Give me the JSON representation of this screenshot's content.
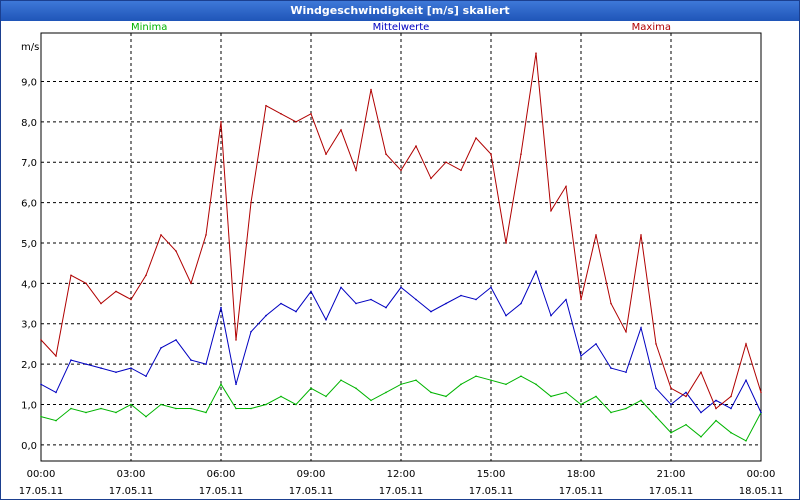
{
  "window": {
    "title": "Windgeschwindigkeit [m/s] skaliert"
  },
  "chart_data": {
    "type": "line",
    "title": "Windgeschwindigkeit [m/s] skaliert",
    "ylabel": "m/s",
    "xlabel": "",
    "ylim": [
      -0.4,
      10.2
    ],
    "xlim": [
      0,
      24
    ],
    "grid": true,
    "legend_position": "top",
    "yticks": [
      {
        "value": 0,
        "label": "0,0"
      },
      {
        "value": 1,
        "label": "1,0"
      },
      {
        "value": 2,
        "label": "2,0"
      },
      {
        "value": 3,
        "label": "3,0"
      },
      {
        "value": 4,
        "label": "4,0"
      },
      {
        "value": 5,
        "label": "5,0"
      },
      {
        "value": 6,
        "label": "6,0"
      },
      {
        "value": 7,
        "label": "7,0"
      },
      {
        "value": 8,
        "label": "8,0"
      },
      {
        "value": 9,
        "label": "9,0"
      }
    ],
    "xticks": [
      {
        "value": 0,
        "time": "00:00",
        "date": "17.05.11"
      },
      {
        "value": 3,
        "time": "03:00",
        "date": "17.05.11"
      },
      {
        "value": 6,
        "time": "06:00",
        "date": "17.05.11"
      },
      {
        "value": 9,
        "time": "09:00",
        "date": "17.05.11"
      },
      {
        "value": 12,
        "time": "12:00",
        "date": "17.05.11"
      },
      {
        "value": 15,
        "time": "15:00",
        "date": "17.05.11"
      },
      {
        "value": 18,
        "time": "18:00",
        "date": "17.05.11"
      },
      {
        "value": 21,
        "time": "21:00",
        "date": "17.05.11"
      },
      {
        "value": 24,
        "time": "00:00",
        "date": "18.05.11"
      }
    ],
    "series": [
      {
        "name": "Minima",
        "color": "#00b400",
        "legend_align": "left",
        "x": [
          0,
          0.5,
          1,
          1.5,
          2,
          2.5,
          3,
          3.5,
          4,
          4.5,
          5,
          5.5,
          6,
          6.5,
          7,
          7.5,
          8,
          8.5,
          9,
          9.5,
          10,
          10.5,
          11,
          11.5,
          12,
          12.5,
          13,
          13.5,
          14,
          14.5,
          15,
          15.5,
          16,
          16.5,
          17,
          17.5,
          18,
          18.5,
          19,
          19.5,
          20,
          20.5,
          21,
          21.5,
          22,
          22.5,
          23,
          23.5,
          24
        ],
        "values": [
          0.7,
          0.6,
          0.9,
          0.8,
          0.9,
          0.8,
          1.0,
          0.7,
          1.0,
          0.9,
          0.9,
          0.8,
          1.5,
          0.9,
          0.9,
          1.0,
          1.2,
          1.0,
          1.4,
          1.2,
          1.6,
          1.4,
          1.1,
          1.3,
          1.5,
          1.6,
          1.3,
          1.2,
          1.5,
          1.7,
          1.6,
          1.5,
          1.7,
          1.5,
          1.2,
          1.3,
          1.0,
          1.2,
          0.8,
          0.9,
          1.1,
          0.7,
          0.3,
          0.5,
          0.2,
          0.6,
          0.3,
          0.1,
          0.8
        ]
      },
      {
        "name": "Mittelwerte",
        "color": "#0000c0",
        "legend_align": "center",
        "x": [
          0,
          0.5,
          1,
          1.5,
          2,
          2.5,
          3,
          3.5,
          4,
          4.5,
          5,
          5.5,
          6,
          6.5,
          7,
          7.5,
          8,
          8.5,
          9,
          9.5,
          10,
          10.5,
          11,
          11.5,
          12,
          12.5,
          13,
          13.5,
          14,
          14.5,
          15,
          15.5,
          16,
          16.5,
          17,
          17.5,
          18,
          18.5,
          19,
          19.5,
          20,
          20.5,
          21,
          21.5,
          22,
          22.5,
          23,
          23.5,
          24
        ],
        "values": [
          1.5,
          1.3,
          2.1,
          2.0,
          1.9,
          1.8,
          1.9,
          1.7,
          2.4,
          2.6,
          2.1,
          2.0,
          3.4,
          1.5,
          2.8,
          3.2,
          3.5,
          3.3,
          3.8,
          3.1,
          3.9,
          3.5,
          3.6,
          3.4,
          3.9,
          3.6,
          3.3,
          3.5,
          3.7,
          3.6,
          3.9,
          3.2,
          3.5,
          4.3,
          3.2,
          3.6,
          2.2,
          2.5,
          1.9,
          1.8,
          2.9,
          1.4,
          1.0,
          1.3,
          0.8,
          1.1,
          0.9,
          1.6,
          0.8
        ]
      },
      {
        "name": "Maxima",
        "color": "#b00000",
        "legend_align": "right",
        "x": [
          0,
          0.5,
          1,
          1.5,
          2,
          2.5,
          3,
          3.5,
          4,
          4.5,
          5,
          5.5,
          6,
          6.5,
          7,
          7.5,
          8,
          8.5,
          9,
          9.5,
          10,
          10.5,
          11,
          11.5,
          12,
          12.5,
          13,
          13.5,
          14,
          14.5,
          15,
          15.5,
          16,
          16.5,
          17,
          17.5,
          18,
          18.5,
          19,
          19.5,
          20,
          20.5,
          21,
          21.5,
          22,
          22.5,
          23,
          23.5,
          24
        ],
        "values": [
          2.6,
          2.2,
          4.2,
          4.0,
          3.5,
          3.8,
          3.6,
          4.2,
          5.2,
          4.8,
          4.0,
          5.2,
          8.0,
          2.6,
          6.0,
          8.4,
          8.2,
          8.0,
          8.2,
          7.2,
          7.8,
          6.8,
          8.8,
          7.2,
          6.8,
          7.4,
          6.6,
          7.0,
          6.8,
          7.6,
          7.2,
          5.0,
          7.2,
          9.7,
          5.8,
          6.4,
          3.6,
          5.2,
          3.5,
          2.8,
          5.2,
          2.5,
          1.4,
          1.2,
          1.8,
          0.9,
          1.2,
          2.5,
          1.3
        ]
      }
    ]
  }
}
